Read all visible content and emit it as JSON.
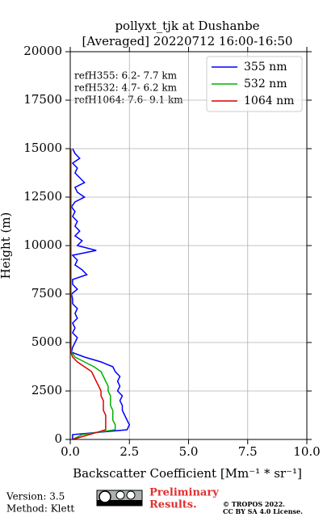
{
  "chart_data": {
    "type": "line",
    "title": [
      "pollyxt_tjk at Dushanbe",
      "[Averaged] 20220712 16:00-16:50"
    ],
    "x_label": "Backscatter Coefficient [Mm⁻¹ * sr⁻¹]",
    "y_label": "Height (m)",
    "annotations": [
      "refH355:  6.2- 7.7 km",
      "refH532:  4.7- 6.2 km",
      "refH1064:  7.6- 9.1 km"
    ],
    "footer": {
      "version": "Version: 3.5",
      "method": "Method: Klett",
      "preliminary": [
        "Preliminary",
        "Results."
      ],
      "copyright": [
        "© TROPOS 2022.",
        "CC BY SA 4.0 License."
      ]
    },
    "xlim": [
      0,
      10
    ],
    "ylim": [
      0,
      20000
    ],
    "xticks": [
      {
        "value": 0,
        "label": "0.0"
      },
      {
        "value": 2.5,
        "label": "2.5"
      },
      {
        "value": 5,
        "label": "5.0"
      },
      {
        "value": 7.5,
        "label": "7.5"
      },
      {
        "value": 10,
        "label": "10.0"
      }
    ],
    "yticks": [
      0,
      2500,
      5000,
      7500,
      10000,
      12500,
      15000,
      17500,
      20000
    ],
    "grid": true,
    "legend": "upper right",
    "heights": [
      0,
      250,
      500,
      750,
      1000,
      1250,
      1500,
      1750,
      2000,
      2250,
      2500,
      2750,
      3000,
      3250,
      3500,
      3750,
      4000,
      4250,
      4500,
      4750,
      5000,
      5250,
      5500,
      5750,
      6000,
      6250,
      6500,
      6750,
      7000,
      7250,
      7500,
      7750,
      8000,
      8250,
      8500,
      8750,
      9000,
      9250,
      9500,
      9750,
      10000,
      10250,
      10500,
      10750,
      11000,
      11250,
      11500,
      11750,
      12000,
      12250,
      12500,
      12750,
      13000,
      13250,
      13500,
      13750,
      14000,
      14250,
      14500,
      14750,
      15000
    ],
    "series": [
      {
        "name": "355 nm",
        "color": "#0000ff",
        "values": [
          0.1,
          0.1,
          2.4,
          2.5,
          2.4,
          2.3,
          2.2,
          2.2,
          2.1,
          2.2,
          2.0,
          2.1,
          2.0,
          2.1,
          1.9,
          1.8,
          1.3,
          0.6,
          0.05,
          0.1,
          0.2,
          0.3,
          0.1,
          0.2,
          0.1,
          0.3,
          0.2,
          0.3,
          0.1,
          0.1,
          0.05,
          0.3,
          0.1,
          0.1,
          0.7,
          0.5,
          0.2,
          0.3,
          0.1,
          1.1,
          0.3,
          0.5,
          0.2,
          0.4,
          0.2,
          0.3,
          0.1,
          0.2,
          0.05,
          0.2,
          0.6,
          0.3,
          0.2,
          0.6,
          0.4,
          0.2,
          0.3,
          0.1,
          0.4,
          0.2,
          0.1
        ]
      },
      {
        "name": "532 nm",
        "color": "#00b000",
        "values": [
          0.1,
          0.5,
          1.9,
          1.9,
          1.8,
          1.8,
          1.8,
          1.7,
          1.7,
          1.7,
          1.6,
          1.6,
          1.5,
          1.4,
          1.3,
          1.0,
          0.6,
          0.2,
          0.05,
          0.03,
          0.03,
          0.03,
          0.03,
          0.03,
          0.03,
          0.03,
          0.03,
          0.03,
          0.03,
          0.03,
          0.03,
          0.03,
          0.03,
          0.03,
          0.03,
          0.03,
          0.03,
          0.03,
          0.03,
          0.03,
          0.03,
          0.03,
          0.03,
          0.03,
          0.03,
          0.03,
          0.03,
          0.03,
          0.03,
          0.03,
          0.03,
          0.03,
          0.03,
          0.03,
          0.03,
          0.03,
          0.03,
          0.03,
          0.03,
          0.03,
          0.03
        ]
      },
      {
        "name": "1064 nm",
        "color": "#dd0000",
        "values": [
          0.1,
          0.8,
          1.5,
          1.5,
          1.5,
          1.5,
          1.4,
          1.4,
          1.4,
          1.3,
          1.3,
          1.2,
          1.1,
          1.0,
          0.9,
          0.6,
          0.3,
          0.1,
          0.02,
          0,
          0,
          0,
          0,
          0,
          0,
          0,
          0,
          0,
          0,
          0,
          0,
          0,
          0,
          0,
          0,
          0,
          0,
          0,
          0,
          0,
          0,
          0,
          0,
          0,
          0,
          0,
          0,
          0,
          0,
          0,
          0,
          0,
          0,
          0,
          0,
          0,
          0,
          0,
          0,
          0,
          0
        ]
      }
    ]
  }
}
